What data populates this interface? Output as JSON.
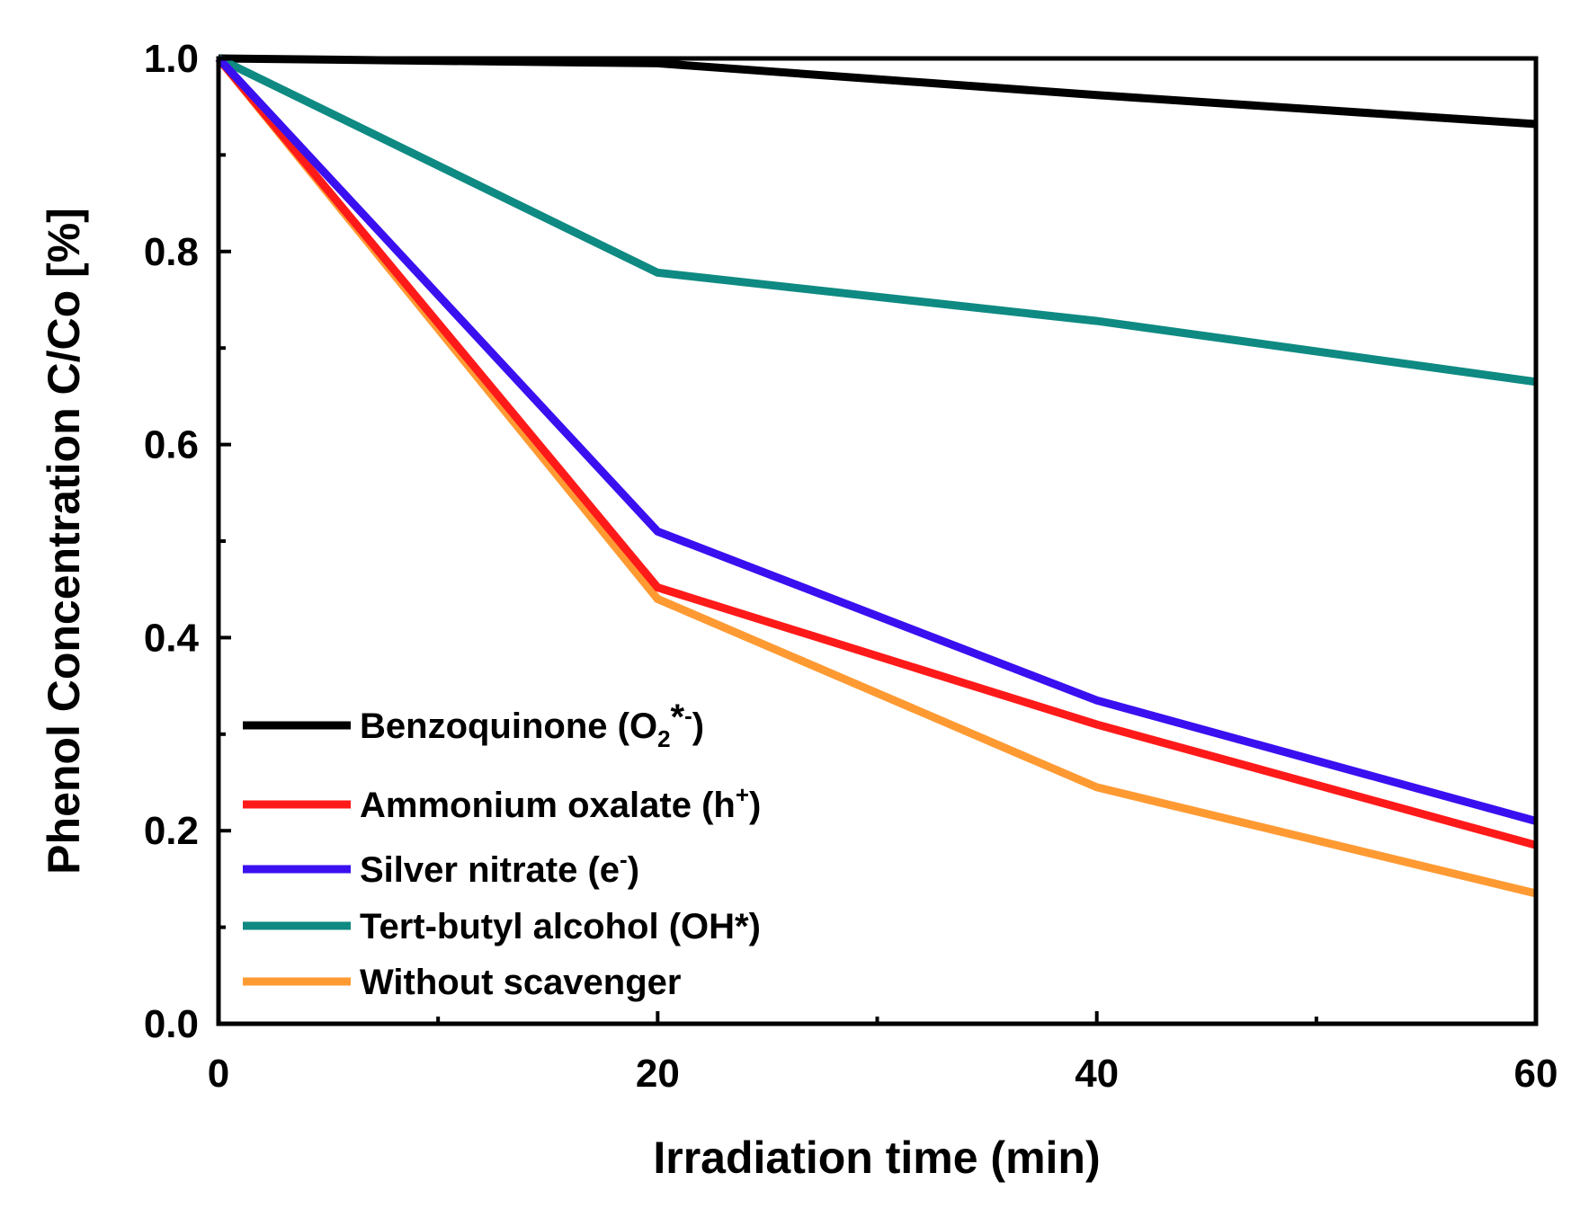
{
  "chart_data": {
    "type": "line",
    "title": "",
    "xlabel": "Irradiation time (min)",
    "ylabel": "Phenol Concentration C/Co [%]",
    "x": [
      0,
      20,
      40,
      60
    ],
    "xlim": [
      0,
      60
    ],
    "ylim": [
      0,
      1.0
    ],
    "x_ticks": [
      0,
      20,
      40,
      60
    ],
    "x_tick_labels": [
      "0",
      "20",
      "40",
      "60"
    ],
    "x_minor_ticks": [
      10,
      30,
      50
    ],
    "y_ticks": [
      0,
      0.2,
      0.4,
      0.6,
      0.8,
      1.0
    ],
    "y_tick_labels": [
      "0.0",
      "0.2",
      "0.4",
      "0.6",
      "0.8",
      "1.0"
    ],
    "y_minor_ticks": [
      0.1,
      0.3,
      0.5,
      0.7,
      0.9
    ],
    "grid": false,
    "legend_position": "bottom-left",
    "series": [
      {
        "name": "Benzoquinone (O2*-)",
        "legend_main": "Benzoquinone (O",
        "legend_sub": "2",
        "legend_mid": "*",
        "legend_sup": "-",
        "legend_tail": ")",
        "color": "#000000",
        "values": [
          1.0,
          0.995,
          0.962,
          0.932
        ]
      },
      {
        "name": "Ammonium oxalate (h+)",
        "legend_main": "Ammonium oxalate (h",
        "legend_sub": "",
        "legend_mid": "",
        "legend_sup": "+",
        "legend_tail": ")",
        "color": "#ff1a1a",
        "values": [
          1.0,
          0.452,
          0.31,
          0.185
        ]
      },
      {
        "name": "Silver nitrate (e-)",
        "legend_main": "Silver nitrate (e",
        "legend_sub": "",
        "legend_mid": "",
        "legend_sup": "-",
        "legend_tail": ")",
        "color": "#3a10f0",
        "values": [
          1.0,
          0.51,
          0.335,
          0.21
        ]
      },
      {
        "name": "Tert-butyl alcohol (OH*)",
        "legend_main": "Tert-butyl alcohol  (OH*)",
        "legend_sub": "",
        "legend_mid": "",
        "legend_sup": "",
        "legend_tail": "",
        "color": "#0e8a82",
        "values": [
          1.0,
          0.778,
          0.728,
          0.665
        ]
      },
      {
        "name": "Without scavenger",
        "legend_main": "Without scavenger",
        "legend_sub": "",
        "legend_mid": "",
        "legend_sup": "",
        "legend_tail": "",
        "color": "#ff9a33",
        "values": [
          1.0,
          0.44,
          0.245,
          0.135
        ]
      }
    ]
  }
}
